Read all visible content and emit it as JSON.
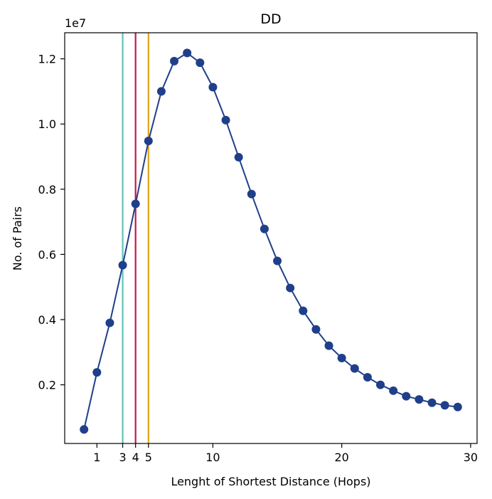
{
  "chart_data": {
    "type": "line",
    "title": "DD",
    "xlabel": "Lenght of Shortest Distance (Hops)",
    "ylabel": "No. of Pairs",
    "y_multiplier": "1e7",
    "xlim": [
      -1.5,
      30.5
    ],
    "ylim": [
      0.02,
      1.28
    ],
    "xticks": [
      1,
      3,
      4,
      5,
      10,
      20,
      30
    ],
    "yticks": [
      0.2,
      0.4,
      0.6,
      0.8,
      1.0,
      1.2
    ],
    "grid": false,
    "series": [
      {
        "color": "#1f3f8a",
        "marker": "circle",
        "x": [
          0,
          1,
          2,
          3,
          4,
          5,
          6,
          7,
          8,
          9,
          10,
          11,
          12,
          13,
          14,
          15,
          16,
          17,
          18,
          19,
          20,
          21,
          22,
          23,
          24,
          25,
          26,
          27,
          28,
          29
        ],
        "y": [
          0.063,
          0.238,
          0.39,
          0.567,
          0.755,
          0.948,
          1.1,
          1.193,
          1.218,
          1.188,
          1.113,
          1.012,
          0.898,
          0.785,
          0.678,
          0.58,
          0.497,
          0.427,
          0.37,
          0.32,
          0.282,
          0.25,
          0.223,
          0.2,
          0.182,
          0.165,
          0.155,
          0.145,
          0.137,
          0.132
        ]
      }
    ],
    "vlines": [
      {
        "x": 3,
        "color": "#5fc4b5"
      },
      {
        "x": 4,
        "color": "#c8174a"
      },
      {
        "x": 5,
        "color": "#e0a418"
      }
    ]
  }
}
